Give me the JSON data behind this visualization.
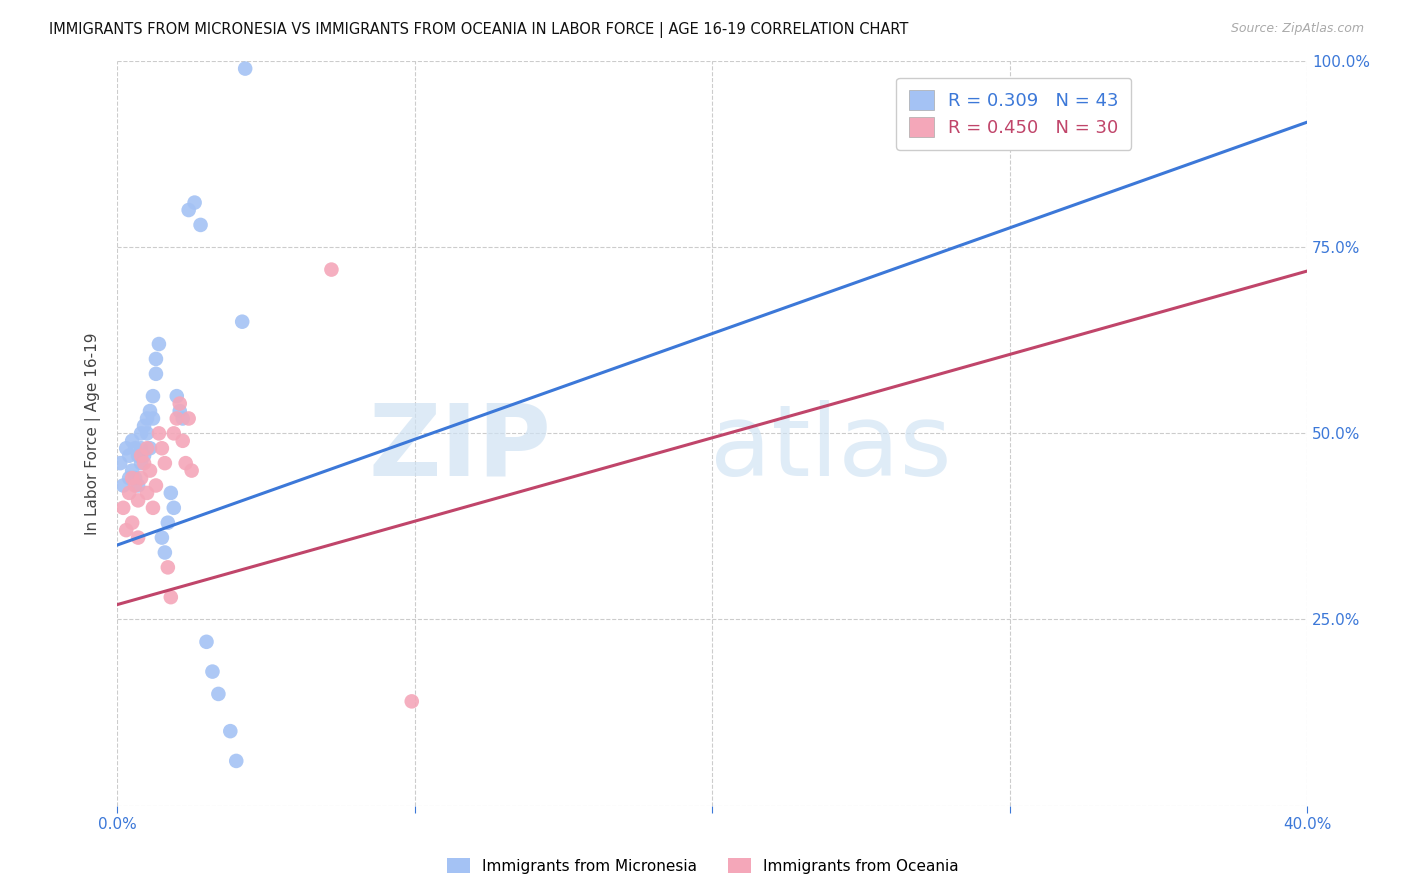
{
  "title": "IMMIGRANTS FROM MICRONESIA VS IMMIGRANTS FROM OCEANIA IN LABOR FORCE | AGE 16-19 CORRELATION CHART",
  "source": "Source: ZipAtlas.com",
  "ylabel": "In Labor Force | Age 16-19",
  "xlim": [
    0.0,
    0.4
  ],
  "ylim": [
    0.0,
    1.0
  ],
  "blue_color": "#a4c2f4",
  "pink_color": "#f4a7b9",
  "blue_line_color": "#3c78d8",
  "pink_line_color": "#c0456a",
  "axis_label_color": "#3c78d8",
  "grid_color": "#cccccc",
  "background_color": "#ffffff",
  "legend_blue_label": "R = 0.309   N = 43",
  "legend_pink_label": "R = 0.450   N = 30",
  "bottom_legend_blue": "Immigrants from Micronesia",
  "bottom_legend_pink": "Immigrants from Oceania",
  "blue_scatter_x": [
    0.001,
    0.002,
    0.003,
    0.004,
    0.004,
    0.005,
    0.005,
    0.006,
    0.006,
    0.007,
    0.007,
    0.008,
    0.008,
    0.008,
    0.009,
    0.009,
    0.01,
    0.01,
    0.011,
    0.011,
    0.012,
    0.012,
    0.013,
    0.013,
    0.014,
    0.015,
    0.016,
    0.017,
    0.018,
    0.019,
    0.02,
    0.021,
    0.022,
    0.024,
    0.026,
    0.028,
    0.03,
    0.032,
    0.034,
    0.038,
    0.04,
    0.042,
    0.043
  ],
  "blue_scatter_y": [
    0.46,
    0.43,
    0.48,
    0.44,
    0.47,
    0.45,
    0.49,
    0.48,
    0.44,
    0.47,
    0.43,
    0.5,
    0.46,
    0.48,
    0.47,
    0.51,
    0.5,
    0.52,
    0.48,
    0.53,
    0.52,
    0.55,
    0.58,
    0.6,
    0.62,
    0.36,
    0.34,
    0.38,
    0.42,
    0.4,
    0.55,
    0.53,
    0.52,
    0.8,
    0.81,
    0.78,
    0.22,
    0.18,
    0.15,
    0.1,
    0.06,
    0.65,
    0.99
  ],
  "pink_scatter_x": [
    0.002,
    0.003,
    0.004,
    0.005,
    0.005,
    0.006,
    0.007,
    0.007,
    0.008,
    0.008,
    0.009,
    0.01,
    0.01,
    0.011,
    0.012,
    0.013,
    0.014,
    0.015,
    0.016,
    0.017,
    0.018,
    0.019,
    0.02,
    0.021,
    0.022,
    0.023,
    0.024,
    0.025,
    0.072,
    0.099
  ],
  "pink_scatter_y": [
    0.4,
    0.37,
    0.42,
    0.38,
    0.44,
    0.43,
    0.41,
    0.36,
    0.44,
    0.47,
    0.46,
    0.42,
    0.48,
    0.45,
    0.4,
    0.43,
    0.5,
    0.48,
    0.46,
    0.32,
    0.28,
    0.5,
    0.52,
    0.54,
    0.49,
    0.46,
    0.52,
    0.45,
    0.72,
    0.14
  ],
  "blue_regression_slope": 1.42,
  "blue_regression_intercept": 0.35,
  "pink_regression_slope": 1.12,
  "pink_regression_intercept": 0.27
}
